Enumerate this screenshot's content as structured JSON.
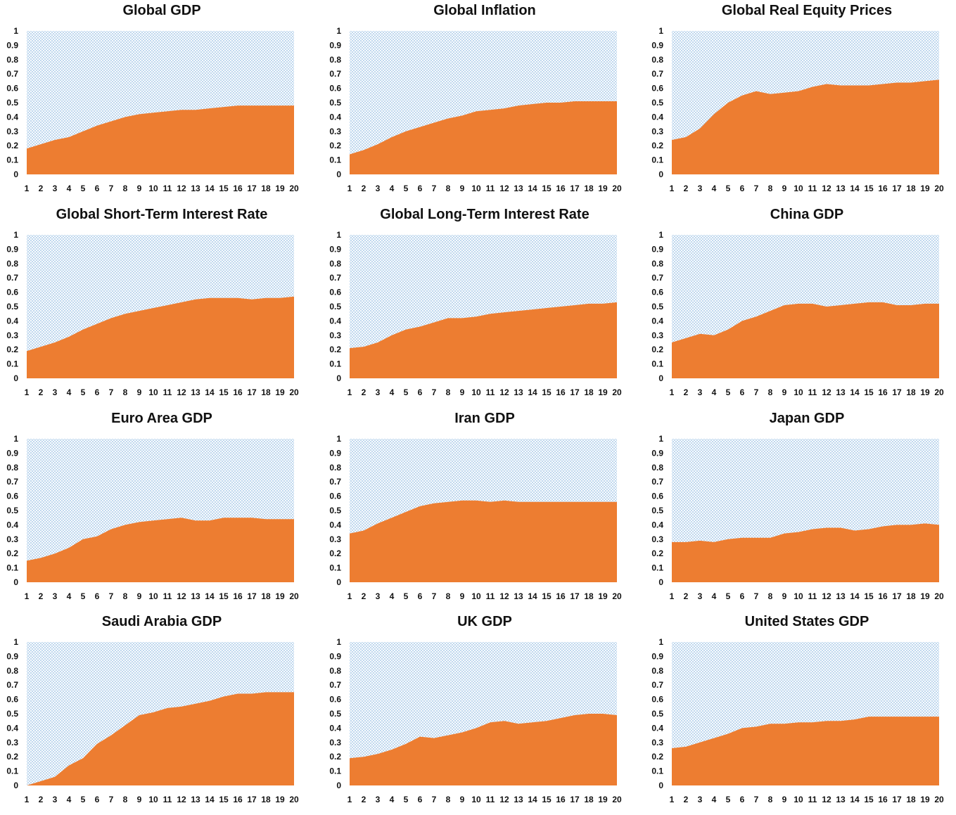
{
  "chart_data": [
    {
      "type": "area",
      "title": "Global GDP",
      "x": [
        1,
        2,
        3,
        4,
        5,
        6,
        7,
        8,
        9,
        10,
        11,
        12,
        13,
        14,
        15,
        16,
        17,
        18,
        19,
        20
      ],
      "y": [
        0.18,
        0.21,
        0.24,
        0.26,
        0.3,
        0.34,
        0.37,
        0.4,
        0.42,
        0.43,
        0.44,
        0.45,
        0.45,
        0.46,
        0.47,
        0.48,
        0.48,
        0.48,
        0.48,
        0.48
      ],
      "ylim": [
        0,
        1
      ],
      "yticks": [
        "0",
        "0.1",
        "0.2",
        "0.3",
        "0.4",
        "0.5",
        "0.6",
        "0.7",
        "0.8",
        "0.9",
        "1"
      ],
      "xticks": [
        "1",
        "2",
        "3",
        "4",
        "5",
        "6",
        "7",
        "8",
        "9",
        "10",
        "11",
        "12",
        "13",
        "14",
        "15",
        "16",
        "17",
        "18",
        "19",
        "20"
      ]
    },
    {
      "type": "area",
      "title": "Global Inflation",
      "x": [
        1,
        2,
        3,
        4,
        5,
        6,
        7,
        8,
        9,
        10,
        11,
        12,
        13,
        14,
        15,
        16,
        17,
        18,
        19,
        20
      ],
      "y": [
        0.14,
        0.17,
        0.21,
        0.26,
        0.3,
        0.33,
        0.36,
        0.39,
        0.41,
        0.44,
        0.45,
        0.46,
        0.48,
        0.49,
        0.5,
        0.5,
        0.51,
        0.51,
        0.51,
        0.51
      ],
      "ylim": [
        0,
        1
      ],
      "yticks": [
        "0",
        "0.1",
        "0.2",
        "0.3",
        "0.4",
        "0.5",
        "0.6",
        "0.7",
        "0.8",
        "0.9",
        "1"
      ],
      "xticks": [
        "1",
        "2",
        "3",
        "4",
        "5",
        "6",
        "7",
        "8",
        "9",
        "10",
        "11",
        "12",
        "13",
        "14",
        "15",
        "16",
        "17",
        "18",
        "19",
        "20"
      ]
    },
    {
      "type": "area",
      "title": "Global Real Equity Prices",
      "x": [
        1,
        2,
        3,
        4,
        5,
        6,
        7,
        8,
        9,
        10,
        11,
        12,
        13,
        14,
        15,
        16,
        17,
        18,
        19,
        20
      ],
      "y": [
        0.24,
        0.26,
        0.32,
        0.42,
        0.5,
        0.55,
        0.58,
        0.56,
        0.57,
        0.58,
        0.61,
        0.63,
        0.62,
        0.62,
        0.62,
        0.63,
        0.64,
        0.64,
        0.65,
        0.66
      ],
      "ylim": [
        0,
        1
      ],
      "yticks": [
        "0",
        "0.1",
        "0.2",
        "0.3",
        "0.4",
        "0.5",
        "0.6",
        "0.7",
        "0.8",
        "0.9",
        "1"
      ],
      "xticks": [
        "1",
        "2",
        "3",
        "4",
        "5",
        "6",
        "7",
        "8",
        "9",
        "10",
        "11",
        "12",
        "13",
        "14",
        "15",
        "16",
        "17",
        "18",
        "19",
        "20"
      ]
    },
    {
      "type": "area",
      "title": "Global Short-Term Interest Rate",
      "x": [
        1,
        2,
        3,
        4,
        5,
        6,
        7,
        8,
        9,
        10,
        11,
        12,
        13,
        14,
        15,
        16,
        17,
        18,
        19,
        20
      ],
      "y": [
        0.19,
        0.22,
        0.25,
        0.29,
        0.34,
        0.38,
        0.42,
        0.45,
        0.47,
        0.49,
        0.51,
        0.53,
        0.55,
        0.56,
        0.56,
        0.56,
        0.55,
        0.56,
        0.56,
        0.57
      ],
      "ylim": [
        0,
        1
      ],
      "yticks": [
        "0",
        "0.1",
        "0.2",
        "0.3",
        "0.4",
        "0.5",
        "0.6",
        "0.7",
        "0.8",
        "0.9",
        "1"
      ],
      "xticks": [
        "1",
        "2",
        "3",
        "4",
        "5",
        "6",
        "7",
        "8",
        "9",
        "10",
        "11",
        "12",
        "13",
        "14",
        "15",
        "16",
        "17",
        "18",
        "19",
        "20"
      ]
    },
    {
      "type": "area",
      "title": "Global Long-Term Interest Rate",
      "x": [
        1,
        2,
        3,
        4,
        5,
        6,
        7,
        8,
        9,
        10,
        11,
        12,
        13,
        14,
        15,
        16,
        17,
        18,
        19,
        20
      ],
      "y": [
        0.21,
        0.22,
        0.25,
        0.3,
        0.34,
        0.36,
        0.39,
        0.42,
        0.42,
        0.43,
        0.45,
        0.46,
        0.47,
        0.48,
        0.49,
        0.5,
        0.51,
        0.52,
        0.52,
        0.53
      ],
      "ylim": [
        0,
        1
      ],
      "yticks": [
        "0",
        "0.1",
        "0.2",
        "0.3",
        "0.4",
        "0.5",
        "0.6",
        "0.7",
        "0.8",
        "0.9",
        "1"
      ],
      "xticks": [
        "1",
        "2",
        "3",
        "4",
        "5",
        "6",
        "7",
        "8",
        "9",
        "10",
        "11",
        "12",
        "13",
        "14",
        "15",
        "16",
        "17",
        "18",
        "19",
        "20"
      ]
    },
    {
      "type": "area",
      "title": "China GDP",
      "x": [
        1,
        2,
        3,
        4,
        5,
        6,
        7,
        8,
        9,
        10,
        11,
        12,
        13,
        14,
        15,
        16,
        17,
        18,
        19,
        20
      ],
      "y": [
        0.25,
        0.28,
        0.31,
        0.3,
        0.34,
        0.4,
        0.43,
        0.47,
        0.51,
        0.52,
        0.52,
        0.5,
        0.51,
        0.52,
        0.53,
        0.53,
        0.51,
        0.51,
        0.52,
        0.52
      ],
      "ylim": [
        0,
        1
      ],
      "yticks": [
        "0",
        "0.1",
        "0.2",
        "0.3",
        "0.4",
        "0.5",
        "0.6",
        "0.7",
        "0.8",
        "0.9",
        "1"
      ],
      "xticks": [
        "1",
        "2",
        "3",
        "4",
        "5",
        "6",
        "7",
        "8",
        "9",
        "10",
        "11",
        "12",
        "13",
        "14",
        "15",
        "16",
        "17",
        "18",
        "19",
        "20"
      ]
    },
    {
      "type": "area",
      "title": "Euro Area GDP",
      "x": [
        1,
        2,
        3,
        4,
        5,
        6,
        7,
        8,
        9,
        10,
        11,
        12,
        13,
        14,
        15,
        16,
        17,
        18,
        19,
        20
      ],
      "y": [
        0.15,
        0.17,
        0.2,
        0.24,
        0.3,
        0.32,
        0.37,
        0.4,
        0.42,
        0.43,
        0.44,
        0.45,
        0.43,
        0.43,
        0.45,
        0.45,
        0.45,
        0.44,
        0.44,
        0.44
      ],
      "ylim": [
        0,
        1
      ],
      "yticks": [
        "0",
        "0.1",
        "0.2",
        "0.3",
        "0.4",
        "0.5",
        "0.6",
        "0.7",
        "0.8",
        "0.9",
        "1"
      ],
      "xticks": [
        "1",
        "2",
        "3",
        "4",
        "5",
        "6",
        "7",
        "8",
        "9",
        "10",
        "11",
        "12",
        "13",
        "14",
        "15",
        "16",
        "17",
        "18",
        "19",
        "20"
      ]
    },
    {
      "type": "area",
      "title": "Iran GDP",
      "x": [
        1,
        2,
        3,
        4,
        5,
        6,
        7,
        8,
        9,
        10,
        11,
        12,
        13,
        14,
        15,
        16,
        17,
        18,
        19,
        20
      ],
      "y": [
        0.34,
        0.36,
        0.41,
        0.45,
        0.49,
        0.53,
        0.55,
        0.56,
        0.57,
        0.57,
        0.56,
        0.57,
        0.56,
        0.56,
        0.56,
        0.56,
        0.56,
        0.56,
        0.56,
        0.56
      ],
      "ylim": [
        0,
        1
      ],
      "yticks": [
        "0",
        "0.1",
        "0.2",
        "0.3",
        "0.4",
        "0.5",
        "0.6",
        "0.7",
        "0.8",
        "0.9",
        "1"
      ],
      "xticks": [
        "1",
        "2",
        "3",
        "4",
        "5",
        "6",
        "7",
        "8",
        "9",
        "10",
        "11",
        "12",
        "13",
        "14",
        "15",
        "16",
        "17",
        "18",
        "19",
        "20"
      ]
    },
    {
      "type": "area",
      "title": "Japan GDP",
      "x": [
        1,
        2,
        3,
        4,
        5,
        6,
        7,
        8,
        9,
        10,
        11,
        12,
        13,
        14,
        15,
        16,
        17,
        18,
        19,
        20
      ],
      "y": [
        0.28,
        0.28,
        0.29,
        0.28,
        0.3,
        0.31,
        0.31,
        0.31,
        0.34,
        0.35,
        0.37,
        0.38,
        0.38,
        0.36,
        0.37,
        0.39,
        0.4,
        0.4,
        0.41,
        0.4
      ],
      "ylim": [
        0,
        1
      ],
      "yticks": [
        "0",
        "0.1",
        "0.2",
        "0.3",
        "0.4",
        "0.5",
        "0.6",
        "0.7",
        "0.8",
        "0.9",
        "1"
      ],
      "xticks": [
        "1",
        "2",
        "3",
        "4",
        "5",
        "6",
        "7",
        "8",
        "9",
        "10",
        "11",
        "12",
        "13",
        "14",
        "15",
        "16",
        "17",
        "18",
        "19",
        "20"
      ]
    },
    {
      "type": "area",
      "title": "Saudi Arabia GDP",
      "x": [
        1,
        2,
        3,
        4,
        5,
        6,
        7,
        8,
        9,
        10,
        11,
        12,
        13,
        14,
        15,
        16,
        17,
        18,
        19,
        20
      ],
      "y": [
        0.0,
        0.03,
        0.06,
        0.14,
        0.19,
        0.29,
        0.35,
        0.42,
        0.49,
        0.51,
        0.54,
        0.55,
        0.57,
        0.59,
        0.62,
        0.64,
        0.64,
        0.65,
        0.65,
        0.65
      ],
      "ylim": [
        0,
        1
      ],
      "yticks": [
        "0",
        "0.1",
        "0.2",
        "0.3",
        "0.4",
        "0.5",
        "0.6",
        "0.7",
        "0.8",
        "0.9",
        "1"
      ],
      "xticks": [
        "1",
        "2",
        "3",
        "4",
        "5",
        "6",
        "7",
        "8",
        "9",
        "10",
        "11",
        "12",
        "13",
        "14",
        "15",
        "16",
        "17",
        "18",
        "19",
        "20"
      ]
    },
    {
      "type": "area",
      "title": "UK GDP",
      "x": [
        1,
        2,
        3,
        4,
        5,
        6,
        7,
        8,
        9,
        10,
        11,
        12,
        13,
        14,
        15,
        16,
        17,
        18,
        19,
        20
      ],
      "y": [
        0.19,
        0.2,
        0.22,
        0.25,
        0.29,
        0.34,
        0.33,
        0.35,
        0.37,
        0.4,
        0.44,
        0.45,
        0.43,
        0.44,
        0.45,
        0.47,
        0.49,
        0.5,
        0.5,
        0.49
      ],
      "ylim": [
        0,
        1
      ],
      "yticks": [
        "0",
        "0.1",
        "0.2",
        "0.3",
        "0.4",
        "0.5",
        "0.6",
        "0.7",
        "0.8",
        "0.9",
        "1"
      ],
      "xticks": [
        "1",
        "2",
        "3",
        "4",
        "5",
        "6",
        "7",
        "8",
        "9",
        "10",
        "11",
        "12",
        "13",
        "14",
        "15",
        "16",
        "17",
        "18",
        "19",
        "20"
      ]
    },
    {
      "type": "area",
      "title": "United States GDP",
      "x": [
        1,
        2,
        3,
        4,
        5,
        6,
        7,
        8,
        9,
        10,
        11,
        12,
        13,
        14,
        15,
        16,
        17,
        18,
        19,
        20
      ],
      "y": [
        0.26,
        0.27,
        0.3,
        0.33,
        0.36,
        0.4,
        0.41,
        0.43,
        0.43,
        0.44,
        0.44,
        0.45,
        0.45,
        0.46,
        0.48,
        0.48,
        0.48,
        0.48,
        0.48,
        0.48
      ],
      "ylim": [
        0,
        1
      ],
      "yticks": [
        "0",
        "0.1",
        "0.2",
        "0.3",
        "0.4",
        "0.5",
        "0.6",
        "0.7",
        "0.8",
        "0.9",
        "1"
      ],
      "xticks": [
        "1",
        "2",
        "3",
        "4",
        "5",
        "6",
        "7",
        "8",
        "9",
        "10",
        "11",
        "12",
        "13",
        "14",
        "15",
        "16",
        "17",
        "18",
        "19",
        "20"
      ]
    }
  ],
  "colors": {
    "area_fill": "#ED7D31",
    "background_pattern": "#9DC3E6"
  }
}
